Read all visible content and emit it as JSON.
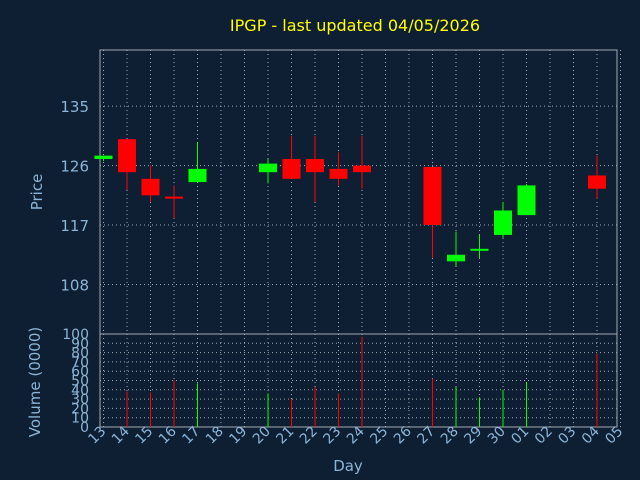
{
  "chart_data": {
    "type": "candlestick",
    "title": "IPGP - last updated 04/05/2026",
    "xlabel": "Day",
    "price_ylabel": "Price",
    "volume_ylabel": "Volume (0000)",
    "price_ticks": [
      108,
      117,
      126,
      135
    ],
    "price_ylim": [
      100.5,
      143.5
    ],
    "volume_ticks": [
      0,
      10,
      20,
      30,
      40,
      50,
      60,
      70,
      80,
      90,
      100
    ],
    "volume_ylim": [
      0,
      100
    ],
    "x_ticks": [
      "13",
      "14",
      "15",
      "16",
      "17",
      "18",
      "19",
      "20",
      "21",
      "22",
      "23",
      "24",
      "25",
      "26",
      "27",
      "28",
      "29",
      "30",
      "01",
      "02",
      "03",
      "04",
      "05"
    ],
    "grid": true,
    "colors": {
      "background": "#0f1f33",
      "up": "#00ff00",
      "down": "#ff0000",
      "title": "#ffff00",
      "axis_text": "#8ab4d8",
      "grid": "#a0a8b0",
      "frame": "#a0a8b0"
    },
    "candles": [
      {
        "x": 0,
        "open": 127.0,
        "high": 127.5,
        "low": 126.7,
        "close": 127.5,
        "volume": 0
      },
      {
        "x": 1,
        "open": 130.0,
        "high": 130.0,
        "low": 122.3,
        "close": 125.0,
        "volume": 38
      },
      {
        "x": 2,
        "open": 124.0,
        "high": 126.0,
        "low": 120.5,
        "close": 121.5,
        "volume": 37
      },
      {
        "x": 3,
        "open": 121.3,
        "high": 123.0,
        "low": 118.0,
        "close": 121.0,
        "volume": 50
      },
      {
        "x": 4,
        "open": 123.5,
        "high": 129.5,
        "low": 123.5,
        "close": 125.5,
        "volume": 47
      },
      {
        "x": 7,
        "open": 125.0,
        "high": 127.0,
        "low": 123.3,
        "close": 126.3,
        "volume": 36
      },
      {
        "x": 8,
        "open": 127.0,
        "high": 130.5,
        "low": 124.0,
        "close": 124.0,
        "volume": 30
      },
      {
        "x": 9,
        "open": 127.0,
        "high": 130.5,
        "low": 120.5,
        "close": 125.0,
        "volume": 43
      },
      {
        "x": 10,
        "open": 125.5,
        "high": 128.0,
        "low": 123.0,
        "close": 124.0,
        "volume": 36
      },
      {
        "x": 11,
        "open": 126.0,
        "high": 130.5,
        "low": 122.5,
        "close": 125.0,
        "volume": 97
      },
      {
        "x": 14,
        "open": 125.8,
        "high": 125.8,
        "low": 112.0,
        "close": 117.0,
        "volume": 52
      },
      {
        "x": 15,
        "open": 111.5,
        "high": 116.0,
        "low": 110.8,
        "close": 112.5,
        "volume": 43
      },
      {
        "x": 16,
        "open": 113.2,
        "high": 115.5,
        "low": 112.0,
        "close": 113.4,
        "volume": 32
      },
      {
        "x": 17,
        "open": 115.5,
        "high": 120.5,
        "low": 115.0,
        "close": 119.2,
        "volume": 40
      },
      {
        "x": 18,
        "open": 118.5,
        "high": 123.2,
        "low": 118.5,
        "close": 123.0,
        "volume": 48
      },
      {
        "x": 21,
        "open": 124.5,
        "high": 127.5,
        "low": 121.0,
        "close": 122.5,
        "volume": 79
      }
    ]
  }
}
